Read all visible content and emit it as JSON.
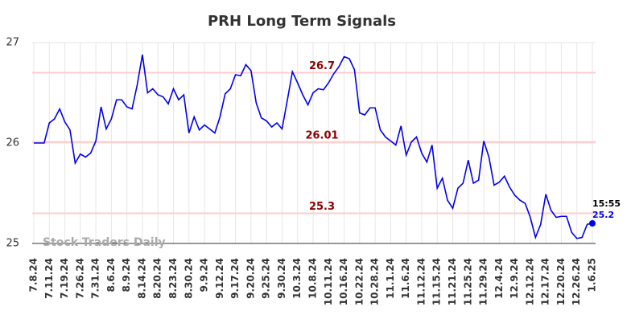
{
  "chart_data": {
    "type": "line",
    "title": "PRH Long Term Signals",
    "categories": [
      "7.8.24",
      null,
      null,
      "7.11.24",
      null,
      null,
      "7.19.24",
      null,
      null,
      "7.26.24",
      null,
      null,
      "7.31.24",
      null,
      null,
      "8.6.24",
      null,
      null,
      "8.9.24",
      null,
      null,
      "8.14.24",
      null,
      null,
      "8.20.24",
      null,
      null,
      "8.23.24",
      null,
      null,
      "8.30.24",
      null,
      null,
      "9.9.24",
      null,
      null,
      "9.12.24",
      null,
      null,
      "9.17.24",
      null,
      null,
      "9.20.24",
      null,
      null,
      "9.25.24",
      null,
      null,
      "9.30.24",
      null,
      null,
      "10.3.24",
      null,
      null,
      "10.8.24",
      null,
      null,
      "10.11.24",
      null,
      null,
      "10.16.24",
      null,
      null,
      "10.22.24",
      null,
      null,
      "10.28.24",
      null,
      null,
      "11.1.24",
      null,
      null,
      "11.6.24",
      null,
      null,
      "11.12.24",
      null,
      null,
      "11.15.24",
      null,
      null,
      "11.21.24",
      null,
      null,
      "11.25.24",
      null,
      null,
      "11.29.24",
      null,
      null,
      "12.4.24",
      null,
      null,
      "12.9.24",
      null,
      null,
      "12.12.24",
      null,
      null,
      "12.17.24",
      null,
      null,
      "12.20.24",
      null,
      null,
      "12.26.24",
      null,
      null,
      "1.6.25"
    ],
    "values": [
      26.0,
      26.0,
      26.0,
      26.2,
      26.24,
      26.34,
      26.21,
      26.13,
      25.8,
      25.89,
      25.86,
      25.9,
      26.02,
      26.36,
      26.14,
      26.24,
      26.43,
      26.43,
      26.36,
      26.34,
      26.58,
      26.88,
      26.5,
      26.54,
      26.48,
      26.46,
      26.39,
      26.54,
      26.43,
      26.48,
      26.1,
      26.26,
      26.13,
      26.18,
      26.14,
      26.1,
      26.26,
      26.49,
      26.54,
      26.68,
      26.67,
      26.78,
      26.72,
      26.4,
      26.25,
      26.22,
      26.16,
      26.2,
      26.14,
      26.42,
      26.71,
      26.6,
      26.48,
      26.38,
      26.5,
      26.54,
      26.53,
      26.6,
      26.69,
      26.76,
      26.86,
      26.84,
      26.73,
      26.3,
      26.28,
      26.35,
      26.35,
      26.13,
      26.06,
      26.02,
      25.98,
      26.17,
      25.88,
      26.01,
      26.06,
      25.9,
      25.81,
      25.98,
      25.55,
      25.65,
      25.43,
      25.35,
      25.55,
      25.6,
      25.83,
      25.6,
      25.63,
      26.02,
      25.86,
      25.58,
      25.61,
      25.67,
      25.56,
      25.48,
      25.43,
      25.4,
      25.26,
      25.06,
      25.19,
      25.49,
      25.33,
      25.26,
      25.27,
      25.27,
      25.11,
      25.05,
      25.06,
      25.19,
      25.2
    ],
    "color": "#0000ee",
    "ylim": [
      25,
      27
    ],
    "yticks": [
      25,
      26,
      27
    ],
    "grid": true,
    "levels": [
      26.7,
      26.01,
      25.3
    ],
    "level_color": "#ffcccc",
    "level_label_color": "#8b0000",
    "last_time": "15:55",
    "watermark": "Stock Traders Daily"
  }
}
